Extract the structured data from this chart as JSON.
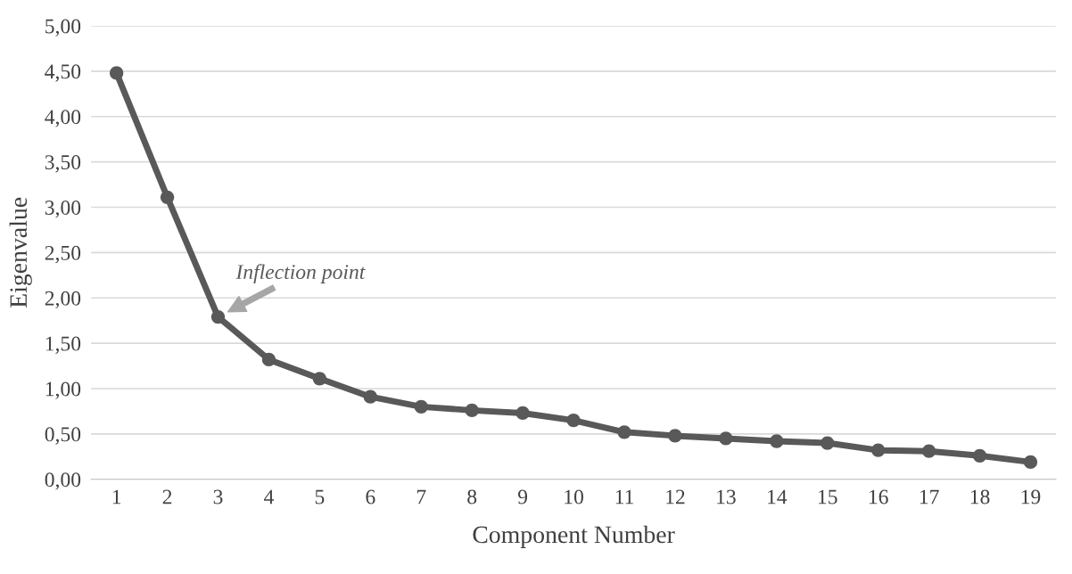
{
  "chart_data": {
    "type": "line",
    "xlabel": "Component Number",
    "ylabel": "Eigenvalue",
    "categories": [
      "1",
      "2",
      "3",
      "4",
      "5",
      "6",
      "7",
      "8",
      "9",
      "10",
      "11",
      "12",
      "13",
      "14",
      "15",
      "16",
      "17",
      "18",
      "19"
    ],
    "series": [
      {
        "color": "#595959",
        "values": [
          4.48,
          3.11,
          1.79,
          1.32,
          1.11,
          0.91,
          0.8,
          0.76,
          0.73,
          0.65,
          0.52,
          0.48,
          0.45,
          0.42,
          0.4,
          0.32,
          0.31,
          0.26,
          0.19
        ]
      }
    ],
    "ylim": [
      0,
      5
    ],
    "yticks": [
      {
        "value": 0,
        "label": "0,00"
      },
      {
        "value": 0.5,
        "label": "0,50"
      },
      {
        "value": 1,
        "label": "1,00"
      },
      {
        "value": 1.5,
        "label": "1,50"
      },
      {
        "value": 2,
        "label": "2,00"
      },
      {
        "value": 2.5,
        "label": "2,50"
      },
      {
        "value": 3,
        "label": "3,00"
      },
      {
        "value": 3.5,
        "label": "3,50"
      },
      {
        "value": 4,
        "label": "4,00"
      },
      {
        "value": 4.5,
        "label": "4,50"
      },
      {
        "value": 5,
        "label": "5,00"
      }
    ],
    "annotations": [
      {
        "text": "Inflection point",
        "x": "3",
        "y": 1.79
      }
    ],
    "grid": "y",
    "legend": false,
    "marker": "circle",
    "line_style": "solid"
  }
}
